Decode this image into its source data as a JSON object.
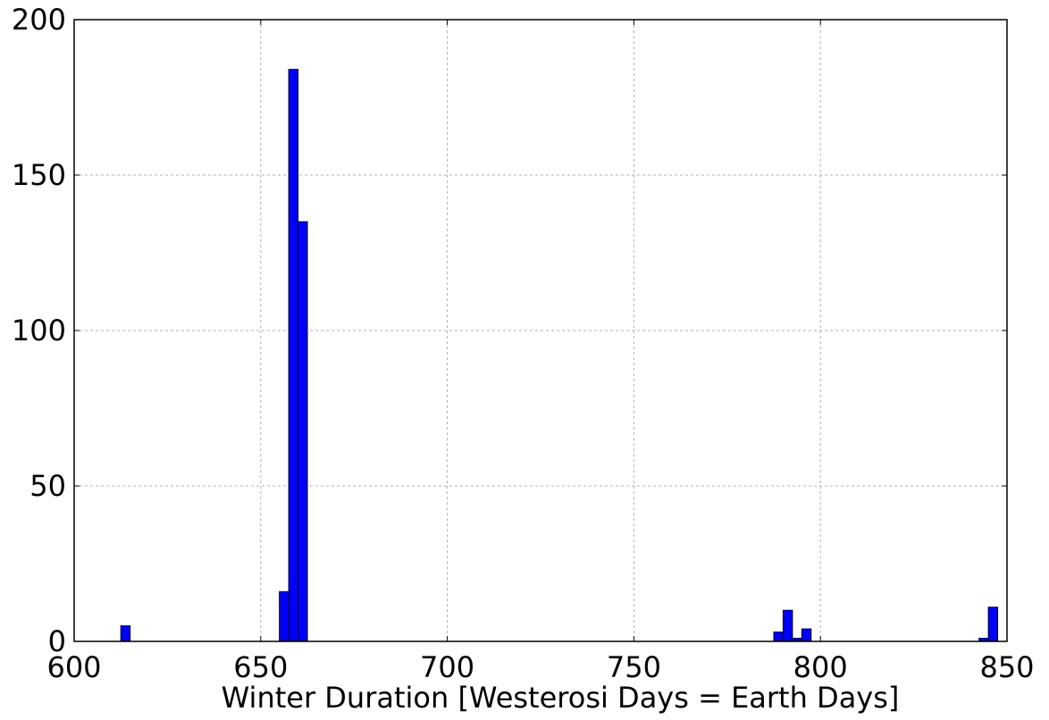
{
  "chart_data": {
    "type": "bar",
    "xlabel": "Winter Duration [Westerosi Days = Earth Days]",
    "ylabel": "",
    "xlim": [
      600,
      850
    ],
    "ylim": [
      0,
      200
    ],
    "x_ticks": [
      600,
      650,
      700,
      750,
      800,
      850
    ],
    "y_ticks": [
      0,
      50,
      100,
      150,
      200
    ],
    "grid": true,
    "bin_width": 2.5,
    "bar_color": "#0000ff",
    "bins": [
      {
        "x": 612.5,
        "value": 5
      },
      {
        "x": 655.0,
        "value": 16
      },
      {
        "x": 657.5,
        "value": 184
      },
      {
        "x": 660.0,
        "value": 135
      },
      {
        "x": 787.5,
        "value": 3
      },
      {
        "x": 790.0,
        "value": 10
      },
      {
        "x": 792.5,
        "value": 1
      },
      {
        "x": 795.0,
        "value": 4
      },
      {
        "x": 842.5,
        "value": 1
      },
      {
        "x": 845.0,
        "value": 11
      }
    ]
  }
}
